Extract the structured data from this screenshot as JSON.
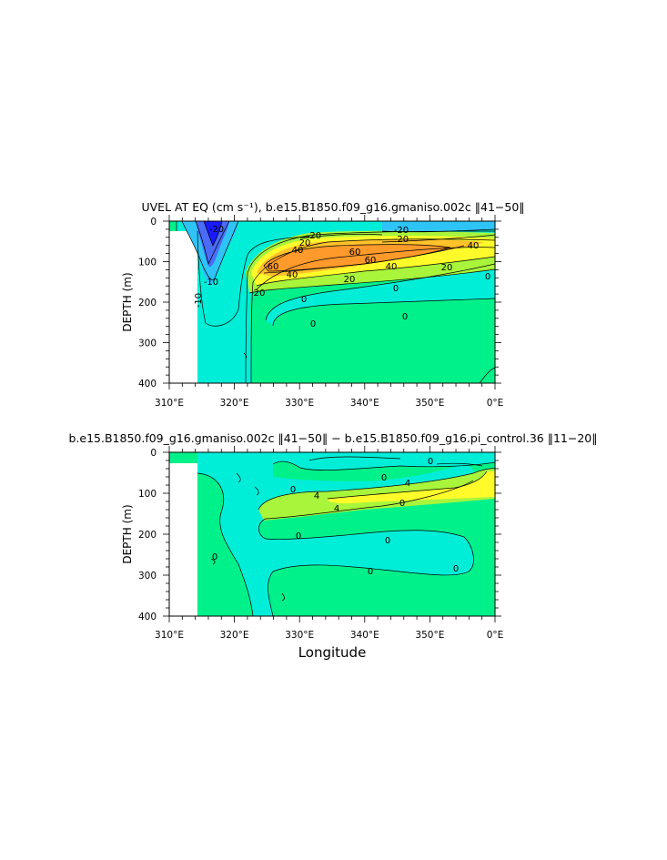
{
  "chart_data": [
    {
      "type": "contour",
      "title": "UVEL AT EQ (cm s⁻¹), b.e15.B1850.f09_g16.gmaniso.002c ‖41−50‖",
      "ylabel": "DEPTH (m)",
      "xlabel": "",
      "x_ticks": [
        "310°E",
        "320°E",
        "330°E",
        "340°E",
        "350°E",
        "0°E"
      ],
      "y_ticks": [
        "0",
        "100",
        "200",
        "300",
        "400"
      ],
      "xlim": [
        310,
        360
      ],
      "ylim": [
        0,
        400
      ],
      "y_inverted": true,
      "contour_interval": 10,
      "contour_labels": [
        "-20",
        "-20",
        "-20",
        "20",
        "20",
        "40",
        "40",
        "40",
        "60",
        "60",
        "60",
        "40",
        "20",
        "20",
        "0",
        "0",
        "0",
        "0",
        "0",
        "-10",
        "-10",
        "-20"
      ],
      "fill_levels": [
        {
          "range": "< -40",
          "color": "#1a1aff"
        },
        {
          "range": "-40 to -20",
          "color": "#4a6cf7"
        },
        {
          "range": "-20 to -10",
          "color": "#2ec4f7"
        },
        {
          "range": "-10 to 0",
          "color": "#00eed8"
        },
        {
          "range": "0 to 10",
          "color": "#00f18a"
        },
        {
          "range": "10 to 20",
          "color": "#a8f53b"
        },
        {
          "range": "20 to 30",
          "color": "#fffb2b"
        },
        {
          "range": "30 to 50",
          "color": "#ffc22b"
        },
        {
          "range": "> 50",
          "color": "#ff9a2b"
        }
      ]
    },
    {
      "type": "contour",
      "title": "b.e15.B1850.f09_g16.gmaniso.002c ‖41−50‖ − b.e15.B1850.f09_g16.pi_control.36 ‖11−20‖",
      "ylabel": "DEPTH (m)",
      "xlabel": "Longitude",
      "x_ticks": [
        "310°E",
        "320°E",
        "330°E",
        "340°E",
        "350°E",
        "0°E"
      ],
      "y_ticks": [
        "0",
        "100",
        "200",
        "300",
        "400"
      ],
      "xlim": [
        310,
        360
      ],
      "ylim": [
        0,
        400
      ],
      "y_inverted": true,
      "contour_interval": 2,
      "contour_labels": [
        "0",
        "0",
        "0",
        "4",
        "4",
        "4",
        "0",
        "0",
        "0",
        "0",
        "0",
        "0"
      ],
      "fill_levels": [
        {
          "range": "< 0",
          "color": "#00eed8"
        },
        {
          "range": "0 to 2",
          "color": "#00f18a"
        },
        {
          "range": "2 to 4",
          "color": "#a8f53b"
        },
        {
          "range": "> 4",
          "color": "#fffb2b"
        }
      ]
    }
  ]
}
